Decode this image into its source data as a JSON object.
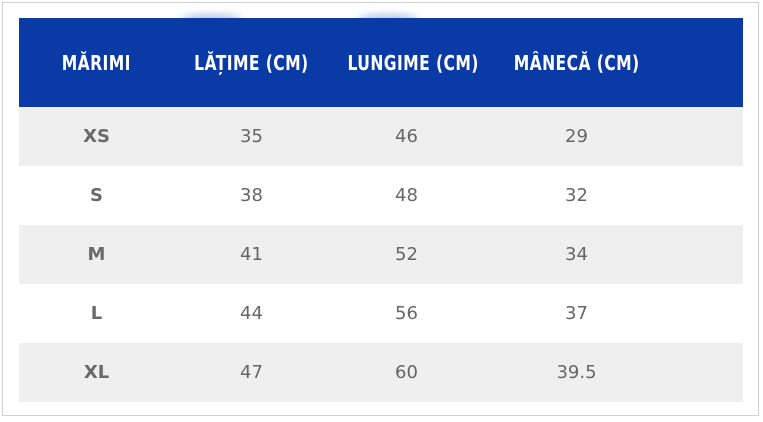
{
  "table": {
    "headers": [
      "MĂRIMI",
      "LĂȚIME (CM)",
      "LUNGIME (CM)",
      "MÂNECĂ (CM)"
    ],
    "rows": [
      {
        "size": "XS",
        "latime": "35",
        "lungime": "46",
        "maneca": "29"
      },
      {
        "size": "S",
        "latime": "38",
        "lungime": "48",
        "maneca": "32"
      },
      {
        "size": "M",
        "latime": "41",
        "lungime": "52",
        "maneca": "34"
      },
      {
        "size": "L",
        "latime": "44",
        "lungime": "56",
        "maneca": "37"
      },
      {
        "size": "XL",
        "latime": "47",
        "lungime": "60",
        "maneca": "39.5"
      }
    ]
  },
  "colors": {
    "header_bg": "#0a3aa6",
    "header_text": "#ffffff",
    "stripe_bg": "#efefef",
    "cell_text": "#666666"
  }
}
